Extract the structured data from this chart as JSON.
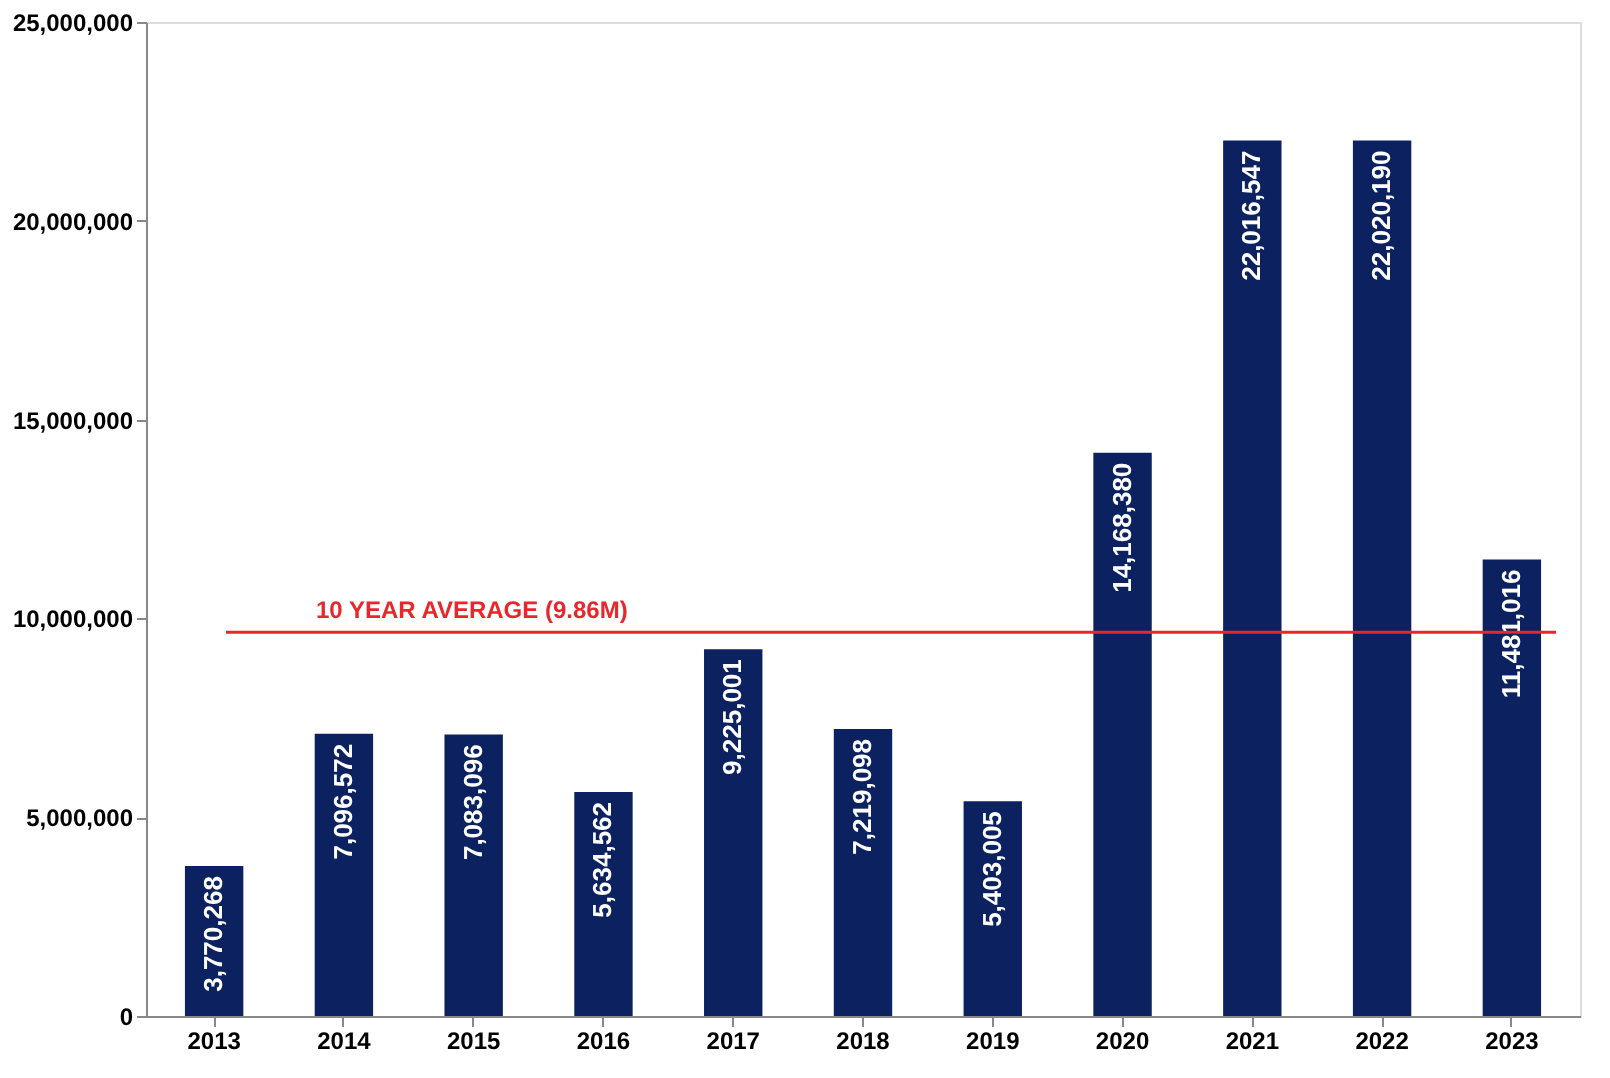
{
  "chart_data": {
    "type": "bar",
    "categories": [
      "2013",
      "2014",
      "2015",
      "2016",
      "2017",
      "2018",
      "2019",
      "2020",
      "2021",
      "2022",
      "2023"
    ],
    "series": [
      {
        "color": "#0c2160",
        "values": [
          3770268,
          7096572,
          7083096,
          5634562,
          9225001,
          7219098,
          5403005,
          14168380,
          22016547,
          22020190,
          11481016
        ],
        "value_labels": [
          "3,770,268",
          "7,096,572",
          "7,083,096",
          "5,634,562",
          "9,225,001",
          "7,219,098",
          "5,403,005",
          "14,168,380",
          "22,016,547",
          "22,020,190",
          "11,481,016"
        ]
      }
    ],
    "ylim": [
      0,
      25000000
    ],
    "yticks": [
      0,
      {
        "value": 5000000,
        "label": "5,000,000"
      },
      {
        "value": 10000000,
        "label": "10,000,000"
      },
      {
        "value": 15000000,
        "label": "15,000,000"
      },
      {
        "value": 20000000,
        "label": "20,000,000"
      },
      {
        "value": 25000000,
        "label": "25,000,000"
      }
    ],
    "grid": false,
    "ref_lines": [
      {
        "axis": "y",
        "value": 9650000,
        "label": "10 YEAR AVERAGE (9.86M)",
        "color": "#e8262b",
        "line_style": "solid"
      }
    ]
  }
}
